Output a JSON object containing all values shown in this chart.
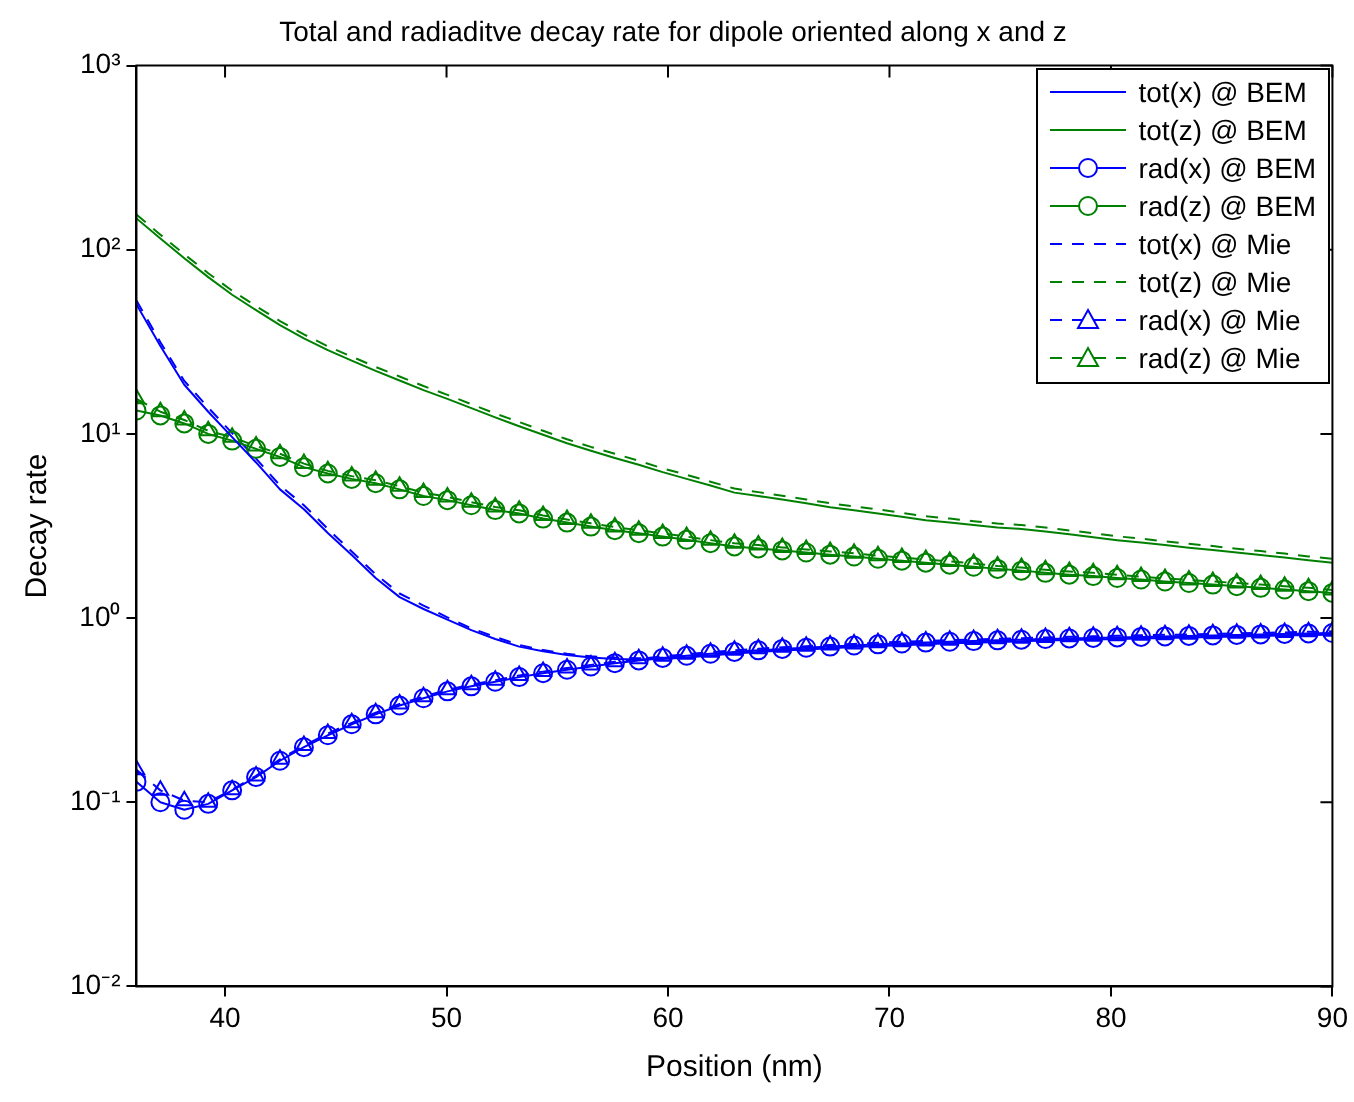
{
  "chart_data": {
    "type": "line",
    "title": "Total and radiaditve decay rate for dipole oriented along x and z",
    "xlabel": "Position (nm)",
    "ylabel": "Decay rate",
    "x": [
      36,
      37.08,
      38.16,
      39.24,
      40.32,
      41.4,
      42.48,
      43.56,
      44.64,
      45.72,
      46.8,
      47.88,
      48.96,
      50.04,
      51.12,
      52.2,
      53.28,
      54.36,
      55.44,
      56.52,
      57.6,
      58.68,
      59.76,
      60.84,
      61.92,
      63,
      64.08,
      65.16,
      66.24,
      67.32,
      68.4,
      69.48,
      70.56,
      71.64,
      72.72,
      73.8,
      74.88,
      75.96,
      77.04,
      78.12,
      79.2,
      80.28,
      81.36,
      82.44,
      83.52,
      84.6,
      85.68,
      86.76,
      87.84,
      88.92,
      90
    ],
    "xlim": [
      36,
      90
    ],
    "xticks": [
      40,
      50,
      60,
      70,
      80,
      90
    ],
    "ylim": [
      0.01,
      1000
    ],
    "yticks": [
      {
        "value": 0.01,
        "label": "10⁻²"
      },
      {
        "value": 0.1,
        "label": "10⁻¹"
      },
      {
        "value": 1,
        "label": "10⁰"
      },
      {
        "value": 10,
        "label": "10¹"
      },
      {
        "value": 100,
        "label": "10²"
      },
      {
        "value": 1000,
        "label": "10³"
      }
    ],
    "log": "y",
    "grid": false,
    "legend": "top right",
    "series": [
      {
        "name": "tot(x) @ BEM",
        "color": "#0000ff",
        "line_style": "solid",
        "values": [
          50.5,
          30,
          18.5,
          13.2,
          9.6,
          7.0,
          5.0,
          3.9,
          2.9,
          2.2,
          1.65,
          1.3,
          1.12,
          0.98,
          0.86,
          0.77,
          0.7,
          0.66,
          0.63,
          0.61,
          0.6,
          0.595,
          0.6,
          0.61,
          0.627,
          0.642,
          0.655,
          0.666,
          0.676,
          0.686,
          0.696,
          0.706,
          0.713,
          0.721,
          0.729,
          0.735,
          0.742,
          0.748,
          0.755,
          0.76,
          0.764,
          0.769,
          0.774,
          0.779,
          0.784,
          0.789,
          0.794,
          0.799,
          0.804,
          0.809,
          0.813
        ]
      },
      {
        "name": "tot(z) @ BEM",
        "color": "#008000",
        "line_style": "solid",
        "values": [
          148,
          115,
          90,
          71,
          57,
          47,
          39,
          33,
          28.5,
          25,
          22,
          19.5,
          17.3,
          15.5,
          13.8,
          12.3,
          11.0,
          9.9,
          8.9,
          8.1,
          7.4,
          6.8,
          6.2,
          5.7,
          5.25,
          4.8,
          4.6,
          4.4,
          4.2,
          4.0,
          3.85,
          3.7,
          3.55,
          3.4,
          3.3,
          3.2,
          3.1,
          3.05,
          2.95,
          2.85,
          2.75,
          2.65,
          2.57,
          2.49,
          2.41,
          2.34,
          2.27,
          2.2,
          2.13,
          2.06,
          2.0
        ]
      },
      {
        "name": "rad(x) @ BEM",
        "color": "#0000ff",
        "line_style": "solid",
        "marker": "circle",
        "values": [
          0.129,
          0.1,
          0.091,
          0.098,
          0.116,
          0.137,
          0.168,
          0.199,
          0.231,
          0.265,
          0.3,
          0.335,
          0.367,
          0.4,
          0.426,
          0.451,
          0.478,
          0.502,
          0.524,
          0.546,
          0.569,
          0.589,
          0.608,
          0.624,
          0.64,
          0.655,
          0.668,
          0.68,
          0.69,
          0.7,
          0.71,
          0.72,
          0.728,
          0.736,
          0.744,
          0.75,
          0.757,
          0.763,
          0.77,
          0.775,
          0.78,
          0.785,
          0.79,
          0.795,
          0.8,
          0.805,
          0.81,
          0.815,
          0.82,
          0.825,
          0.83
        ]
      },
      {
        "name": "rad(z) @ BEM",
        "color": "#008000",
        "line_style": "solid",
        "marker": "circle",
        "values": [
          13.4,
          12.6,
          11.4,
          10.0,
          9.2,
          8.3,
          7.5,
          6.6,
          6.1,
          5.7,
          5.4,
          5.0,
          4.6,
          4.37,
          4.1,
          3.86,
          3.7,
          3.47,
          3.3,
          3.14,
          3.0,
          2.89,
          2.77,
          2.66,
          2.55,
          2.45,
          2.39,
          2.33,
          2.27,
          2.21,
          2.16,
          2.1,
          2.05,
          2.0,
          1.95,
          1.9,
          1.85,
          1.81,
          1.76,
          1.72,
          1.69,
          1.65,
          1.62,
          1.58,
          1.55,
          1.52,
          1.49,
          1.46,
          1.43,
          1.4,
          1.37
        ]
      },
      {
        "name": "tot(x) @ Mie",
        "color": "#0000ff",
        "line_style": "dashed",
        "values": [
          53,
          31.5,
          19.4,
          13.9,
          10.1,
          7.35,
          5.25,
          4.1,
          3.05,
          2.3,
          1.73,
          1.36,
          1.17,
          1.01,
          0.88,
          0.79,
          0.715,
          0.67,
          0.64,
          0.62,
          0.61,
          0.605,
          0.61,
          0.62,
          0.636,
          0.651,
          0.664,
          0.675,
          0.686,
          0.696,
          0.706,
          0.716,
          0.723,
          0.731,
          0.739,
          0.745,
          0.752,
          0.758,
          0.765,
          0.77,
          0.775,
          0.78,
          0.785,
          0.79,
          0.795,
          0.8,
          0.805,
          0.81,
          0.815,
          0.82,
          0.825
        ]
      },
      {
        "name": "tot(z) @ Mie",
        "color": "#008000",
        "line_style": "dashed",
        "values": [
          155.4,
          120.8,
          94.5,
          74.6,
          59.9,
          49.4,
          41,
          34.7,
          29.9,
          26.3,
          23.1,
          20.5,
          18.2,
          16.3,
          14.5,
          12.9,
          11.6,
          10.4,
          9.35,
          8.5,
          7.8,
          7.15,
          6.5,
          6.0,
          5.5,
          5.05,
          4.83,
          4.62,
          4.41,
          4.2,
          4.04,
          3.89,
          3.73,
          3.57,
          3.47,
          3.36,
          3.26,
          3.2,
          3.1,
          2.99,
          2.89,
          2.78,
          2.7,
          2.61,
          2.53,
          2.46,
          2.38,
          2.31,
          2.24,
          2.16,
          2.1
        ]
      },
      {
        "name": "rad(x) @ Mie",
        "color": "#0000ff",
        "line_style": "dashed",
        "marker": "triangle",
        "values": [
          0.15,
          0.116,
          0.102,
          0.1,
          0.117,
          0.139,
          0.171,
          0.203,
          0.236,
          0.27,
          0.306,
          0.342,
          0.374,
          0.408,
          0.435,
          0.46,
          0.488,
          0.512,
          0.535,
          0.557,
          0.58,
          0.601,
          0.62,
          0.636,
          0.653,
          0.668,
          0.681,
          0.694,
          0.704,
          0.714,
          0.724,
          0.734,
          0.743,
          0.751,
          0.759,
          0.765,
          0.772,
          0.778,
          0.785,
          0.791,
          0.796,
          0.801,
          0.806,
          0.811,
          0.816,
          0.821,
          0.826,
          0.831,
          0.836,
          0.842,
          0.847
        ]
      },
      {
        "name": "rad(z) @ Mie",
        "color": "#008000",
        "line_style": "dashed",
        "marker": "triangle",
        "values": [
          15.5,
          13.2,
          11.9,
          10.4,
          9.6,
          8.6,
          7.8,
          6.9,
          6.3,
          5.9,
          5.6,
          5.2,
          4.8,
          4.55,
          4.26,
          4.01,
          3.85,
          3.61,
          3.43,
          3.27,
          3.12,
          3.0,
          2.88,
          2.77,
          2.65,
          2.55,
          2.49,
          2.42,
          2.36,
          2.3,
          2.25,
          2.18,
          2.13,
          2.08,
          2.03,
          1.98,
          1.92,
          1.88,
          1.83,
          1.79,
          1.76,
          1.72,
          1.68,
          1.64,
          1.61,
          1.58,
          1.55,
          1.52,
          1.49,
          1.46,
          1.42
        ]
      }
    ]
  }
}
